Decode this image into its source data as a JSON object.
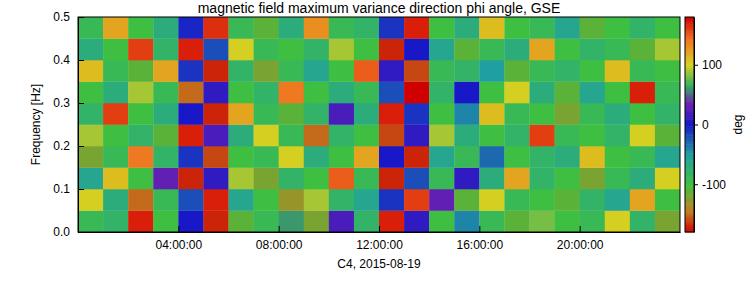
{
  "chart_data": {
    "type": "heatmap",
    "title": "magnetic field maximum variance direction phi angle, GSE",
    "x_label": "C4, 2015-08-19",
    "y_label": "Frequency [Hz]",
    "xlim": [
      0,
      24
    ],
    "xticks": [
      {
        "value": 4,
        "label": "04:00:00"
      },
      {
        "value": 8,
        "label": "08:00:00"
      },
      {
        "value": 12,
        "label": "12:00:00"
      },
      {
        "value": 16,
        "label": "16:00:00"
      },
      {
        "value": 20,
        "label": "20:00:00"
      }
    ],
    "ylim": [
      0,
      0.5
    ],
    "yticks": [
      {
        "value": 0,
        "label": "0.0"
      },
      0.1,
      0.2,
      0.3,
      0.4,
      0.5
    ],
    "x_bins": [
      0,
      1,
      2,
      3,
      4,
      5,
      6,
      7,
      8,
      9,
      10,
      11,
      12,
      13,
      14,
      15,
      16,
      17,
      18,
      19,
      20,
      21,
      22,
      23,
      24
    ],
    "y_bins": [
      0,
      0.05,
      0.1,
      0.15,
      0.2,
      0.25,
      0.3,
      0.35,
      0.4,
      0.45,
      0.5
    ],
    "cells": [
      [
        -90,
        -80,
        170,
        -100,
        0,
        -170,
        -110,
        -90,
        60,
        -120,
        20,
        -80,
        170,
        10,
        -100,
        -40,
        -90,
        -110,
        80,
        -100,
        -90,
        100,
        -80,
        -120
      ],
      [
        100,
        -70,
        -150,
        -90,
        -20,
        170,
        -60,
        -100,
        -130,
        90,
        -80,
        -60,
        -10,
        160,
        30,
        -110,
        100,
        -90,
        -100,
        -110,
        -80,
        -60,
        120,
        -100
      ],
      [
        -60,
        110,
        -100,
        30,
        -170,
        10,
        90,
        -120,
        -80,
        -100,
        150,
        -90,
        -170,
        -20,
        -90,
        10,
        -70,
        120,
        -80,
        -100,
        -120,
        -90,
        -70,
        100
      ],
      [
        -120,
        -90,
        140,
        -80,
        -10,
        -160,
        -100,
        -90,
        100,
        -70,
        -100,
        120,
        0,
        -170,
        -60,
        -90,
        -30,
        -100,
        -80,
        -70,
        110,
        -100,
        -90,
        -60
      ],
      [
        90,
        -100,
        -80,
        -110,
        170,
        20,
        -70,
        100,
        -90,
        -150,
        -80,
        -100,
        -160,
        10,
        90,
        -70,
        -100,
        -80,
        160,
        -90,
        -100,
        -80,
        100,
        -110
      ],
      [
        -80,
        160,
        -100,
        -70,
        0,
        -170,
        120,
        -90,
        -110,
        -80,
        20,
        -70,
        170,
        -10,
        -100,
        -40,
        110,
        -90,
        -100,
        -120,
        -90,
        -70,
        -100,
        -80
      ],
      [
        -100,
        -70,
        90,
        -90,
        -150,
        10,
        -100,
        -80,
        140,
        -100,
        -70,
        -90,
        -20,
        180,
        -80,
        0,
        -100,
        100,
        -70,
        -110,
        -60,
        -100,
        170,
        -90
      ],
      [
        110,
        -90,
        -110,
        120,
        -10,
        -170,
        -80,
        -120,
        -90,
        -60,
        -100,
        150,
        10,
        -160,
        -90,
        -80,
        -50,
        -110,
        -90,
        -80,
        -100,
        110,
        -90,
        -100
      ],
      [
        -70,
        -100,
        160,
        -80,
        170,
        -20,
        100,
        -90,
        -100,
        -80,
        90,
        -100,
        -170,
        0,
        -60,
        -110,
        -90,
        -70,
        120,
        -100,
        -80,
        -90,
        -110,
        90
      ],
      [
        -90,
        120,
        -100,
        -70,
        -5,
        165,
        -90,
        -110,
        -70,
        130,
        -90,
        -80,
        -10,
        170,
        -100,
        -70,
        110,
        -100,
        -90,
        -60,
        -110,
        -100,
        -80,
        -100
      ]
    ],
    "colorbar": {
      "label": "deg",
      "range": [
        -180,
        180
      ],
      "ticks": [
        -100,
        0,
        100
      ]
    }
  }
}
